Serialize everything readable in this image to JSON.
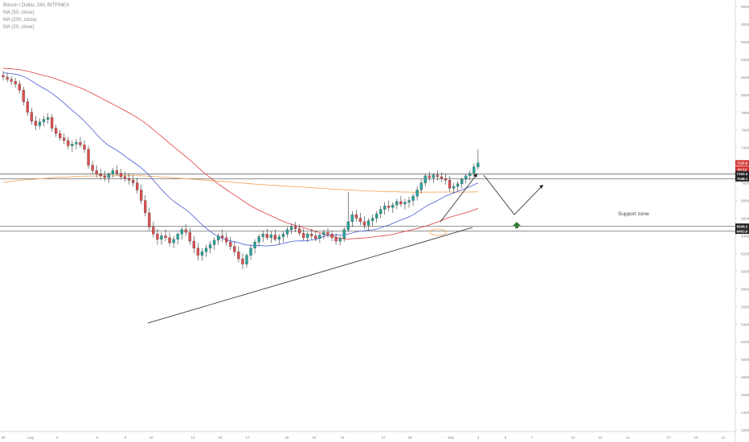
{
  "header": {
    "symbol": "Bitcoin / Dollar, 240, BITFINEX",
    "indicators": [
      "MA (50, close)",
      "MA (200, close)",
      "MA (20, close)"
    ]
  },
  "colors": {
    "candle_up": "#26a69a",
    "candle_down": "#e04f4f",
    "wick": "#333333",
    "ma20": "#4a5bd4",
    "ma50": "#e03c3c",
    "ma200": "#f0a050",
    "support_line": "#555555",
    "trend_line": "#222222",
    "price_tag_red": "#d32f2f",
    "price_tag_dark": "#222222",
    "arrow_green": "#2e7d32",
    "grid_text": "#888888"
  },
  "annotations": {
    "support_label": "Support zone",
    "projection_icon": "up-arrow-icon"
  },
  "chart_data": {
    "type": "candlestick",
    "title": "Bitcoin / Dollar, 240, BITFINEX",
    "ylim": [
      4200,
      9000
    ],
    "y_ticks": [
      {
        "value": 9000,
        "label": "9000.0"
      },
      {
        "value": 8800,
        "label": "8800.0"
      },
      {
        "value": 8600,
        "label": "8600.0"
      },
      {
        "value": 8400,
        "label": "8400.0"
      },
      {
        "value": 8200,
        "label": "8200.0"
      },
      {
        "value": 8000,
        "label": "8000.0"
      },
      {
        "value": 7800,
        "label": "7800.0"
      },
      {
        "value": 7600,
        "label": "7600.0"
      },
      {
        "value": 7400,
        "label": "7400.0"
      },
      {
        "value": 7200,
        "label": "7200.0"
      },
      {
        "value": 7000,
        "label": "7000.0"
      },
      {
        "value": 6800,
        "label": "6800.0"
      },
      {
        "value": 6600,
        "label": "6600.0"
      },
      {
        "value": 6400,
        "label": "6400.0"
      },
      {
        "value": 6200,
        "label": "6200.0"
      },
      {
        "value": 6000,
        "label": "6000.0"
      },
      {
        "value": 5800,
        "label": "5800.0"
      },
      {
        "value": 5600,
        "label": "5600.0"
      },
      {
        "value": 5400,
        "label": "5400.0"
      },
      {
        "value": 5200,
        "label": "5200.0"
      },
      {
        "value": 5000,
        "label": "5000.0"
      },
      {
        "value": 4800,
        "label": "4800.0"
      },
      {
        "value": 4600,
        "label": "4600.0"
      },
      {
        "value": 4400,
        "label": "4400.0"
      },
      {
        "value": 4200,
        "label": "4200.0"
      }
    ],
    "x_ticks": [
      "30",
      "Aug",
      "3",
      "6",
      "8",
      "10",
      "13",
      "15",
      "17",
      "20",
      "22",
      "24",
      "27",
      "29",
      "Sep",
      "3",
      "5",
      "7",
      "10",
      "12",
      "14",
      "17",
      "19",
      "21"
    ],
    "price_labels": [
      {
        "value": 7225.8,
        "label": "7225.8",
        "style": "red"
      },
      {
        "value": 7155.0,
        "label": "03:12",
        "style": "red"
      },
      {
        "value": 7102.3,
        "label": "7102.3",
        "style": "dark"
      },
      {
        "value": 7048.1,
        "label": "7048.1",
        "style": "dark"
      },
      {
        "value": 6508.2,
        "label": "6508.2",
        "style": "dark"
      },
      {
        "value": 6453.6,
        "label": "6453.6",
        "style": "dark"
      }
    ],
    "support_levels": [
      7102.3,
      7048.1,
      6508.2,
      6453.6
    ],
    "candles": [
      [
        8220,
        8270,
        8160,
        8200
      ],
      [
        8200,
        8250,
        8140,
        8175
      ],
      [
        8175,
        8210,
        8110,
        8150
      ],
      [
        8150,
        8190,
        8080,
        8120
      ],
      [
        8120,
        8160,
        8010,
        8050
      ],
      [
        8050,
        8090,
        7880,
        7920
      ],
      [
        7920,
        7960,
        7760,
        7800
      ],
      [
        7800,
        7850,
        7660,
        7700
      ],
      [
        7700,
        7760,
        7600,
        7650
      ],
      [
        7650,
        7730,
        7610,
        7690
      ],
      [
        7690,
        7760,
        7640,
        7720
      ],
      [
        7720,
        7790,
        7670,
        7740
      ],
      [
        7740,
        7780,
        7580,
        7620
      ],
      [
        7620,
        7660,
        7520,
        7560
      ],
      [
        7560,
        7600,
        7480,
        7510
      ],
      [
        7510,
        7560,
        7440,
        7480
      ],
      [
        7480,
        7520,
        7380,
        7420
      ],
      [
        7420,
        7480,
        7350,
        7440
      ],
      [
        7440,
        7500,
        7380,
        7460
      ],
      [
        7460,
        7520,
        7400,
        7430
      ],
      [
        7430,
        7480,
        7340,
        7380
      ],
      [
        7380,
        7420,
        7160,
        7200
      ],
      [
        7200,
        7250,
        7100,
        7140
      ],
      [
        7140,
        7200,
        7060,
        7100
      ],
      [
        7100,
        7160,
        7040,
        7080
      ],
      [
        7080,
        7140,
        7020,
        7060
      ],
      [
        7060,
        7120,
        7000,
        7100
      ],
      [
        7100,
        7170,
        7060,
        7140
      ],
      [
        7140,
        7200,
        7080,
        7110
      ],
      [
        7110,
        7160,
        7040,
        7070
      ],
      [
        7070,
        7130,
        7010,
        7050
      ],
      [
        7050,
        7110,
        6980,
        7030
      ],
      [
        7030,
        7090,
        6960,
        7000
      ],
      [
        7000,
        7060,
        6880,
        6920
      ],
      [
        6920,
        6980,
        6760,
        6800
      ],
      [
        6800,
        6860,
        6620,
        6660
      ],
      [
        6660,
        6720,
        6460,
        6500
      ],
      [
        6500,
        6560,
        6380,
        6420
      ],
      [
        6420,
        6480,
        6300,
        6360
      ],
      [
        6360,
        6440,
        6300,
        6400
      ],
      [
        6400,
        6470,
        6340,
        6380
      ],
      [
        6380,
        6440,
        6280,
        6320
      ],
      [
        6320,
        6400,
        6260,
        6360
      ],
      [
        6360,
        6440,
        6300,
        6420
      ],
      [
        6420,
        6500,
        6360,
        6470
      ],
      [
        6470,
        6530,
        6400,
        6440
      ],
      [
        6440,
        6490,
        6300,
        6340
      ],
      [
        6340,
        6400,
        6200,
        6260
      ],
      [
        6260,
        6320,
        6120,
        6180
      ],
      [
        6180,
        6260,
        6120,
        6220
      ],
      [
        6220,
        6300,
        6160,
        6260
      ],
      [
        6260,
        6340,
        6200,
        6300
      ],
      [
        6300,
        6380,
        6240,
        6350
      ],
      [
        6350,
        6430,
        6300,
        6400
      ],
      [
        6400,
        6470,
        6330,
        6380
      ],
      [
        6380,
        6440,
        6290,
        6330
      ],
      [
        6330,
        6390,
        6240,
        6280
      ],
      [
        6280,
        6340,
        6180,
        6220
      ],
      [
        6220,
        6280,
        6100,
        6140
      ],
      [
        6140,
        6200,
        6020,
        6080
      ],
      [
        6080,
        6200,
        6040,
        6180
      ],
      [
        6180,
        6300,
        6130,
        6260
      ],
      [
        6260,
        6360,
        6200,
        6330
      ],
      [
        6330,
        6420,
        6280,
        6390
      ],
      [
        6390,
        6460,
        6330,
        6420
      ],
      [
        6420,
        6480,
        6350,
        6380
      ],
      [
        6380,
        6450,
        6320,
        6410
      ],
      [
        6410,
        6470,
        6340,
        6360
      ],
      [
        6360,
        6420,
        6300,
        6390
      ],
      [
        6390,
        6450,
        6330,
        6420
      ],
      [
        6420,
        6500,
        6380,
        6470
      ],
      [
        6470,
        6540,
        6420,
        6500
      ],
      [
        6500,
        6560,
        6440,
        6480
      ],
      [
        6480,
        6530,
        6400,
        6430
      ],
      [
        6430,
        6480,
        6350,
        6380
      ],
      [
        6380,
        6440,
        6330,
        6420
      ],
      [
        6420,
        6480,
        6360,
        6400
      ],
      [
        6400,
        6460,
        6340,
        6370
      ],
      [
        6370,
        6430,
        6320,
        6410
      ],
      [
        6410,
        6470,
        6360,
        6440
      ],
      [
        6440,
        6490,
        6380,
        6420
      ],
      [
        6420,
        6460,
        6340,
        6380
      ],
      [
        6380,
        6430,
        6300,
        6340
      ],
      [
        6340,
        6400,
        6290,
        6370
      ],
      [
        6370,
        6500,
        6330,
        6470
      ],
      [
        6470,
        6900,
        6440,
        6560
      ],
      [
        6560,
        6680,
        6500,
        6640
      ],
      [
        6640,
        6700,
        6560,
        6600
      ],
      [
        6600,
        6660,
        6520,
        6560
      ],
      [
        6560,
        6620,
        6480,
        6520
      ],
      [
        6520,
        6600,
        6460,
        6570
      ],
      [
        6570,
        6640,
        6510,
        6600
      ],
      [
        6600,
        6680,
        6550,
        6650
      ],
      [
        6650,
        6740,
        6600,
        6700
      ],
      [
        6700,
        6780,
        6640,
        6740
      ],
      [
        6740,
        6800,
        6680,
        6720
      ],
      [
        6720,
        6780,
        6660,
        6750
      ],
      [
        6750,
        6820,
        6700,
        6790
      ],
      [
        6790,
        6850,
        6730,
        6760
      ],
      [
        6760,
        6820,
        6700,
        6780
      ],
      [
        6780,
        6840,
        6720,
        6800
      ],
      [
        6800,
        6880,
        6740,
        6850
      ],
      [
        6850,
        6960,
        6800,
        6920
      ],
      [
        6920,
        7040,
        6880,
        7000
      ],
      [
        7000,
        7100,
        6960,
        7080
      ],
      [
        7080,
        7130,
        7020,
        7060
      ],
      [
        7060,
        7110,
        7000,
        7090
      ],
      [
        7090,
        7140,
        7030,
        7070
      ],
      [
        7070,
        7120,
        7010,
        7050
      ],
      [
        7050,
        7100,
        6980,
        7030
      ],
      [
        7030,
        7080,
        6900,
        6940
      ],
      [
        6940,
        7000,
        6880,
        6960
      ],
      [
        6960,
        7020,
        6900,
        6990
      ],
      [
        6990,
        7060,
        6940,
        7040
      ],
      [
        7040,
        7100,
        6990,
        7080
      ],
      [
        7080,
        7140,
        7030,
        7110
      ],
      [
        7110,
        7220,
        7070,
        7180
      ],
      [
        7180,
        7380,
        7150,
        7225.8
      ]
    ]
  }
}
